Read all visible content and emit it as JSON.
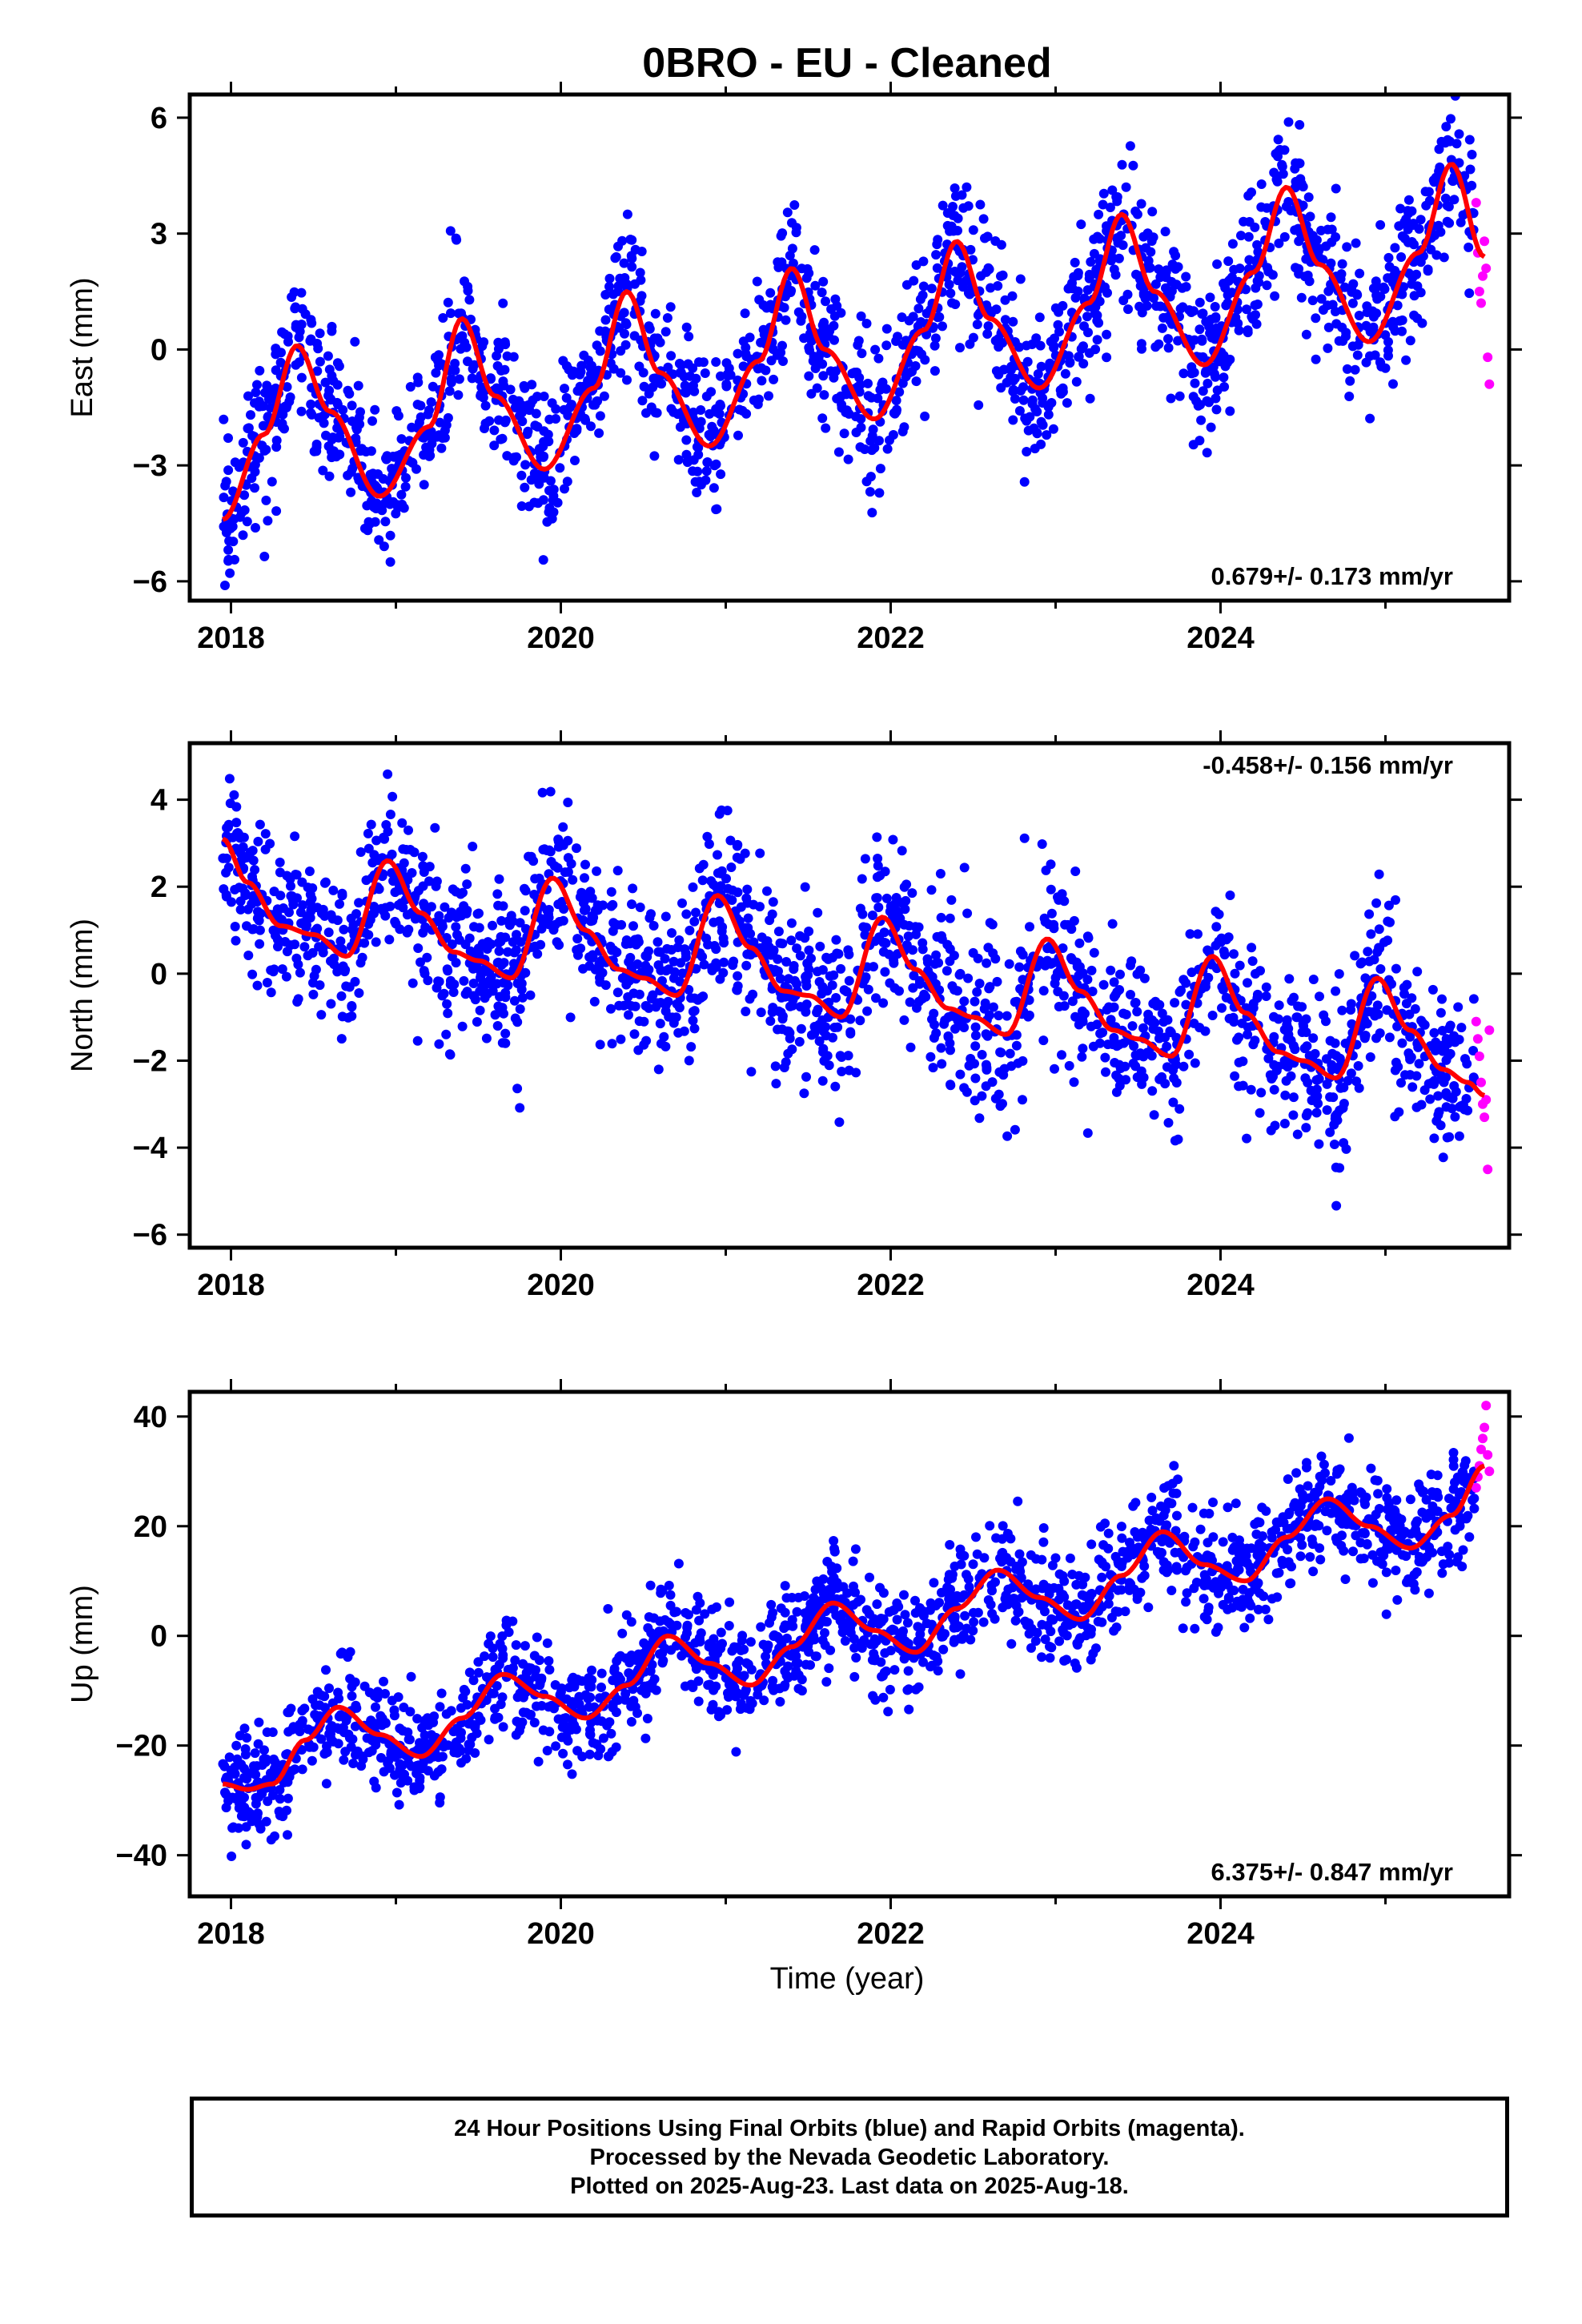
{
  "title": "0BRO  - EU - Cleaned",
  "colors": {
    "final_orbits": "#0000ff",
    "rapid_orbits": "#ff00ff",
    "model_fit": "#ff0000",
    "axes": "#000000"
  },
  "xlabel": "Time (year)",
  "footer": {
    "line1": "24 Hour Positions Using Final Orbits (blue) and Rapid Orbits (magenta).",
    "line2": "Processed by the Nevada Geodetic Laboratory.",
    "line3": "Plotted on 2025-Aug-23. Last data on 2025-Aug-18."
  },
  "chart_data": [
    {
      "type": "scatter",
      "component": "east",
      "ylabel": "East (mm)",
      "xlim": [
        2017.75,
        2025.75
      ],
      "ylim": [
        -6.5,
        6.6
      ],
      "x_ticks": [
        2018,
        2020,
        2022,
        2024
      ],
      "x_tick_labels": [
        "2018",
        "2020",
        "2022",
        "2024"
      ],
      "y_ticks": [
        -6,
        -3,
        0,
        3,
        6
      ],
      "y_tick_labels": [
        "−6",
        "−3",
        "0",
        "3",
        "6"
      ],
      "grid": false,
      "rate_annotation": "0.679+/- 0.173 mm/yr",
      "rate_annotation_position": "bottom-right",
      "fit_curve": {
        "name": "model",
        "x": [
          2017.95,
          2018.2,
          2018.4,
          2018.6,
          2018.9,
          2019.2,
          2019.4,
          2019.6,
          2019.9,
          2020.2,
          2020.4,
          2020.6,
          2020.9,
          2021.2,
          2021.4,
          2021.6,
          2021.9,
          2022.2,
          2022.4,
          2022.6,
          2022.9,
          2023.2,
          2023.4,
          2023.6,
          2023.9,
          2024.2,
          2024.4,
          2024.6,
          2024.9,
          2025.2,
          2025.4,
          2025.6
        ],
        "y": [
          -4.4,
          -2.2,
          0.1,
          -1.6,
          -3.8,
          -2.0,
          0.8,
          -1.2,
          -3.1,
          -1.0,
          1.5,
          -0.6,
          -2.5,
          -0.3,
          2.1,
          0.0,
          -1.8,
          0.5,
          2.8,
          0.8,
          -1.0,
          1.2,
          3.5,
          1.5,
          -0.4,
          2.0,
          4.2,
          2.2,
          0.2,
          2.5,
          4.8,
          2.4
        ]
      },
      "final_orbits": {
        "name": "Final Orbits",
        "x_range": [
          2017.95,
          2025.54
        ],
        "noise_sd": 0.95
      },
      "rapid_orbits": {
        "name": "Rapid Orbits",
        "x": [
          2025.55,
          2025.56,
          2025.57,
          2025.58,
          2025.59,
          2025.6,
          2025.61,
          2025.62,
          2025.63
        ],
        "y": [
          3.8,
          2.5,
          1.5,
          1.2,
          1.9,
          2.8,
          2.1,
          -0.2,
          -0.9
        ]
      }
    },
    {
      "type": "scatter",
      "component": "north",
      "ylabel": "North (mm)",
      "xlim": [
        2017.75,
        2025.75
      ],
      "ylim": [
        -6.3,
        5.3
      ],
      "x_ticks": [
        2018,
        2020,
        2022,
        2024
      ],
      "x_tick_labels": [
        "2018",
        "2020",
        "2022",
        "2024"
      ],
      "y_ticks": [
        -6,
        -4,
        -2,
        0,
        2,
        4
      ],
      "y_tick_labels": [
        "−6",
        "−4",
        "−2",
        "0",
        "2",
        "4"
      ],
      "grid": false,
      "rate_annotation": "-0.458+/- 0.156 mm/yr",
      "rate_annotation_position": "top-right",
      "fit_curve": {
        "name": "model",
        "x": [
          2017.95,
          2018.1,
          2018.3,
          2018.5,
          2018.7,
          2018.95,
          2019.15,
          2019.35,
          2019.5,
          2019.7,
          2019.95,
          2020.15,
          2020.35,
          2020.5,
          2020.7,
          2020.95,
          2021.15,
          2021.35,
          2021.5,
          2021.7,
          2021.95,
          2022.15,
          2022.35,
          2022.5,
          2022.7,
          2022.95,
          2023.15,
          2023.35,
          2023.5,
          2023.7,
          2023.95,
          2024.15,
          2024.35,
          2024.5,
          2024.7,
          2024.95,
          2025.15,
          2025.35,
          2025.5,
          2025.6
        ],
        "y": [
          3.1,
          2.1,
          1.1,
          0.9,
          0.4,
          2.6,
          1.4,
          0.5,
          0.3,
          -0.1,
          2.2,
          1.0,
          0.1,
          -0.1,
          -0.5,
          1.8,
          0.6,
          -0.4,
          -0.5,
          -1.0,
          1.3,
          0.1,
          -0.8,
          -1.0,
          -1.4,
          0.8,
          -0.4,
          -1.3,
          -1.5,
          -1.9,
          0.4,
          -0.9,
          -1.8,
          -2.0,
          -2.4,
          -0.1,
          -1.3,
          -2.2,
          -2.5,
          -2.8
        ]
      },
      "final_orbits": {
        "name": "Final Orbits",
        "x_range": [
          2017.95,
          2025.54
        ],
        "noise_sd": 0.95
      },
      "rapid_orbits": {
        "name": "Rapid Orbits",
        "x": [
          2025.55,
          2025.56,
          2025.57,
          2025.58,
          2025.59,
          2025.6,
          2025.61,
          2025.62,
          2025.63
        ],
        "y": [
          -1.1,
          -1.5,
          -1.9,
          -2.5,
          -3.0,
          -3.3,
          -2.9,
          -4.5,
          -1.3
        ]
      }
    },
    {
      "type": "scatter",
      "component": "up",
      "ylabel": "Up (mm)",
      "xlim": [
        2017.75,
        2025.75
      ],
      "ylim": [
        -47.5,
        44.5
      ],
      "x_ticks": [
        2018,
        2020,
        2022,
        2024
      ],
      "x_tick_labels": [
        "2018",
        "2020",
        "2022",
        "2024"
      ],
      "y_ticks": [
        -40,
        -20,
        0,
        20,
        40
      ],
      "y_tick_labels": [
        "−40",
        "−20",
        "0",
        "20",
        "40"
      ],
      "grid": false,
      "rate_annotation": "6.375+/- 0.847 mm/yr",
      "rate_annotation_position": "bottom-right",
      "fit_curve": {
        "name": "model",
        "x": [
          2017.95,
          2018.1,
          2018.25,
          2018.45,
          2018.65,
          2018.9,
          2019.15,
          2019.4,
          2019.65,
          2019.9,
          2020.15,
          2020.4,
          2020.65,
          2020.9,
          2021.15,
          2021.4,
          2021.65,
          2021.9,
          2022.15,
          2022.4,
          2022.65,
          2022.9,
          2023.15,
          2023.4,
          2023.65,
          2023.9,
          2024.15,
          2024.4,
          2024.65,
          2024.9,
          2025.15,
          2025.4,
          2025.6
        ],
        "y": [
          -27,
          -28,
          -27,
          -19,
          -13,
          -18,
          -22,
          -15,
          -7,
          -11,
          -15,
          -9,
          0,
          -5,
          -9,
          -2,
          6,
          1,
          -3,
          5,
          12,
          7,
          3,
          11,
          19,
          13,
          10,
          18,
          25,
          20,
          16,
          22,
          31
        ]
      },
      "final_orbits": {
        "name": "Final Orbits",
        "x_range": [
          2017.95,
          2025.54
        ],
        "noise_sd": 5.0
      },
      "rapid_orbits": {
        "name": "Rapid Orbits",
        "x": [
          2025.55,
          2025.56,
          2025.57,
          2025.58,
          2025.59,
          2025.6,
          2025.61,
          2025.62,
          2025.63
        ],
        "y": [
          27,
          29,
          31,
          34,
          36,
          38,
          42,
          33,
          30
        ]
      }
    }
  ]
}
